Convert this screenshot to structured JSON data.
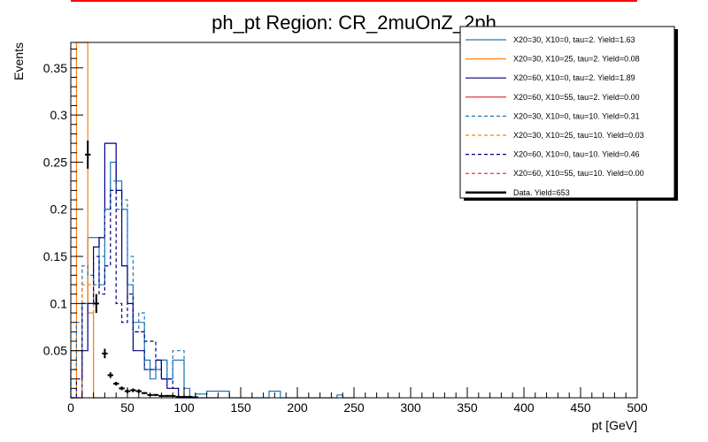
{
  "chart_data": {
    "type": "histogram",
    "title": "ph_pt Region: CR_2muOnZ_2ph",
    "xlabel": "pt [GeV]",
    "ylabel": "Events",
    "xlim": [
      0,
      500
    ],
    "ylim": [
      0,
      0.377
    ],
    "xticks": [
      0,
      50,
      100,
      150,
      200,
      250,
      300,
      350,
      400,
      450,
      500
    ],
    "yticks": [
      0.05,
      0.1,
      0.15,
      0.2,
      0.25,
      0.3,
      0.35
    ],
    "bin_width": 5,
    "grid": false,
    "legend_position": "top-right",
    "series": [
      {
        "name": "X20=30, X10=0, tau=2. Yield=1.63",
        "color": "#1f77b4",
        "dash": false,
        "edges": [
          0,
          5,
          10,
          15,
          20,
          25,
          30,
          35,
          40,
          45,
          50,
          55,
          60,
          65,
          70,
          75,
          80,
          85,
          90,
          95,
          100,
          105,
          110,
          115,
          120,
          125,
          130,
          135,
          140,
          145,
          150,
          155,
          160,
          165,
          170,
          175,
          180,
          185,
          190,
          195,
          200,
          205,
          210,
          215,
          220,
          225,
          230,
          235,
          240,
          245,
          250
        ],
        "values": [
          0.05,
          0.05,
          0.1,
          0.17,
          0.17,
          0.12,
          0.2,
          0.25,
          0.23,
          0.2,
          0.12,
          0.08,
          0.08,
          0.04,
          0.02,
          0.03,
          0.04,
          0.02,
          0.04,
          0.04,
          0.01,
          0.0,
          0.004,
          0.004,
          0.007,
          0.007,
          0.007,
          0.007,
          0.0,
          0.0,
          0.0,
          0.0,
          0.0,
          0.0,
          0.0,
          0.007,
          0.007,
          0.0,
          0.0,
          0.0,
          0.0,
          0.0,
          0.0,
          0.0,
          0.0,
          0.0,
          0.0,
          0.003,
          0.0,
          0.0
        ]
      },
      {
        "name": "X20=30, X10=25, tau=2. Yield=0.08",
        "color": "#ff7f0e",
        "dash": false,
        "edges": [
          0,
          5,
          10,
          15,
          20,
          25,
          30
        ],
        "values": [
          0.0,
          0.377,
          0.377,
          0.09,
          0.0,
          0.0
        ]
      },
      {
        "name": "X20=60, X10=0, tau=2. Yield=1.89",
        "color": "#000080",
        "dash": false,
        "edges": [
          0,
          5,
          10,
          15,
          20,
          25,
          30,
          35,
          40,
          45,
          50,
          55,
          60,
          65,
          70,
          75,
          80,
          85,
          90,
          95,
          100,
          105,
          110,
          115,
          120,
          125,
          130
        ],
        "values": [
          0.0,
          0.0,
          0.05,
          0.1,
          0.16,
          0.17,
          0.27,
          0.27,
          0.22,
          0.14,
          0.1,
          0.05,
          0.05,
          0.03,
          0.03,
          0.04,
          0.02,
          0.01,
          0.01,
          0.0,
          0.0,
          0.0,
          0.0,
          0.0,
          0.0,
          0.0
        ]
      },
      {
        "name": "X20=60, X10=55, tau=2. Yield=0.00",
        "color": "#d62728",
        "dash": false,
        "edges": [
          0,
          500
        ],
        "values": [
          0.0
        ]
      },
      {
        "name": "X20=30, X10=0, tau=10. Yield=0.31",
        "color": "#1f77b4",
        "dash": true,
        "edges": [
          0,
          5,
          10,
          15,
          20,
          25,
          30,
          35,
          40,
          45,
          50,
          55,
          60,
          65,
          70,
          75,
          80,
          85,
          90,
          95,
          100,
          105
        ],
        "values": [
          0.03,
          0.08,
          0.14,
          0.13,
          0.12,
          0.15,
          0.2,
          0.23,
          0.2,
          0.21,
          0.15,
          0.07,
          0.09,
          0.03,
          0.03,
          0.04,
          0.04,
          0.02,
          0.05,
          0.05,
          0.0
        ]
      },
      {
        "name": "X20=30, X10=25, tau=10. Yield=0.03",
        "color": "#ff7f0e",
        "dash": true,
        "edges": [
          0,
          5,
          10,
          15,
          20,
          25
        ],
        "values": [
          0.0,
          0.0,
          0.12,
          0.12,
          0.0
        ]
      },
      {
        "name": "X20=60, X10=0, tau=10. Yield=0.46",
        "color": "#000080",
        "dash": true,
        "edges": [
          0,
          5,
          10,
          15,
          20,
          25,
          30,
          35,
          40,
          45,
          50,
          55,
          60,
          65,
          70,
          75,
          80,
          85,
          90,
          95
        ],
        "values": [
          0.0,
          0.02,
          0.1,
          0.1,
          0.15,
          0.11,
          0.14,
          0.22,
          0.1,
          0.08,
          0.11,
          0.07,
          0.07,
          0.06,
          0.06,
          0.04,
          0.02,
          0.02,
          0.01
        ]
      },
      {
        "name": "X20=60, X10=55, tau=10. Yield=0.00",
        "color": "#d62728",
        "dash": true,
        "edges": [
          0,
          500
        ],
        "values": [
          0.0
        ]
      }
    ],
    "data_points": {
      "name": "Data. Yield=653",
      "color": "#000000",
      "x": [
        15,
        22.5,
        30,
        35,
        40,
        45,
        50,
        55,
        60,
        65,
        70,
        75,
        80,
        85,
        90,
        95,
        100,
        105,
        110
      ],
      "y": [
        0.258,
        0.1,
        0.047,
        0.024,
        0.015,
        0.01,
        0.007,
        0.008,
        0.007,
        0.005,
        0.003,
        0.003,
        0.002,
        0.002,
        0.002,
        0.001,
        0.001,
        0.001,
        0.0005
      ],
      "yerr": [
        0.015,
        0.01,
        0.005,
        0.003,
        0.002,
        0.002,
        0.002,
        0.002,
        0.002,
        0.001,
        0.001,
        0.001,
        0.001,
        0.001,
        0.001,
        0.001,
        0.001,
        0.001,
        0.0005
      ]
    }
  }
}
